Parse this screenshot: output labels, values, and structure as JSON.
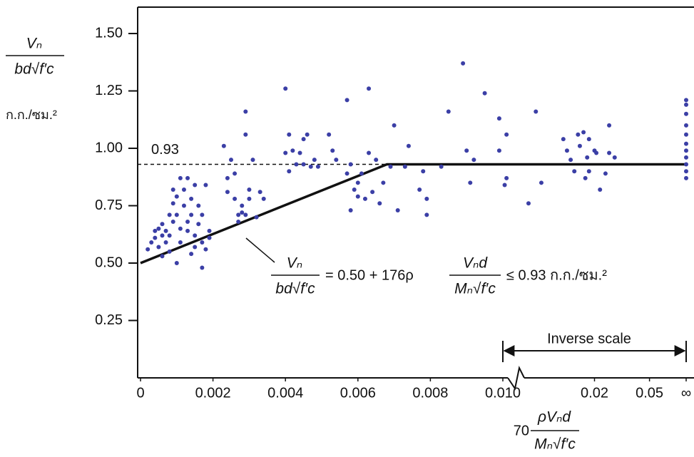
{
  "chart_data": {
    "type": "scatter",
    "y_label": {
      "numerator": "Vₙ",
      "denominator": "bd√f′c",
      "unit": "ก.ก./ซม.²"
    },
    "ylim": [
      0,
      1.615
    ],
    "yticks": [
      0.25,
      {
        "value": 0.5,
        "label": "0.50"
      },
      0.75,
      {
        "value": 1,
        "label": "1.00"
      },
      1.25,
      {
        "value": 1.5,
        "label": "1.50"
      }
    ],
    "reference_line": {
      "value": 0.93,
      "label": "0.93",
      "style": "dashed"
    },
    "color": "#3b3fa6",
    "panels": [
      {
        "scale": "linear",
        "xlim": [
          0,
          0.01
        ],
        "xticks": [
          0,
          0.002,
          0.004,
          0.006,
          0.008,
          {
            "value": 0.01,
            "label": "0.010"
          }
        ],
        "x": [
          0.0002,
          0.0003,
          0.0004,
          0.0004,
          0.0005,
          0.0005,
          0.0006,
          0.0006,
          0.0006,
          0.0007,
          0.0007,
          0.0008,
          0.0008,
          0.0009,
          0.0009,
          0.0009,
          0.001,
          0.001,
          0.0011,
          0.0011,
          0.0011,
          0.0012,
          0.0012,
          0.0013,
          0.0013,
          0.0013,
          0.0014,
          0.0014,
          0.0015,
          0.0015,
          0.0015,
          0.0016,
          0.0016,
          0.0017,
          0.0017,
          0.0017,
          0.0018,
          0.0018,
          0.0019,
          0.0019,
          0.001,
          0.0008,
          0.0014,
          0.0023,
          0.0024,
          0.0024,
          0.0025,
          0.0026,
          0.0026,
          0.0027,
          0.0027,
          0.0028,
          0.0028,
          0.0029,
          0.0029,
          0.0029,
          0.003,
          0.003,
          0.0031,
          0.0032,
          0.0033,
          0.0034,
          0.004,
          0.004,
          0.0041,
          0.0041,
          0.0042,
          0.0043,
          0.0044,
          0.0045,
          0.0045,
          0.0046,
          0.0047,
          0.0048,
          0.0049,
          0.0052,
          0.0053,
          0.0054,
          0.0057,
          0.0057,
          0.0058,
          0.0058,
          0.0059,
          0.006,
          0.006,
          0.0061,
          0.0062,
          0.0063,
          0.0063,
          0.0064,
          0.0065,
          0.0066,
          0.0067,
          0.0069,
          0.007,
          0.0071,
          0.0073,
          0.0074,
          0.0077,
          0.0078,
          0.0079,
          0.0079,
          0.0083,
          0.0085,
          0.0089,
          0.009,
          0.0091,
          0.0092,
          0.0095,
          0.0099,
          0.0099
        ],
        "values": [
          0.56,
          0.59,
          0.64,
          0.61,
          0.65,
          0.57,
          0.62,
          0.53,
          0.67,
          0.59,
          0.64,
          0.71,
          0.62,
          0.68,
          0.76,
          0.82,
          0.79,
          0.71,
          0.65,
          0.87,
          0.59,
          0.82,
          0.75,
          0.68,
          0.64,
          0.87,
          0.78,
          0.71,
          0.62,
          0.57,
          0.84,
          0.75,
          0.67,
          0.59,
          0.71,
          0.48,
          0.56,
          0.84,
          0.64,
          0.61,
          0.5,
          0.55,
          0.54,
          1.01,
          0.87,
          0.81,
          0.95,
          0.89,
          0.78,
          0.71,
          0.68,
          0.75,
          0.72,
          1.16,
          1.06,
          0.71,
          0.78,
          0.82,
          0.95,
          0.7,
          0.81,
          0.78,
          1.26,
          0.98,
          0.9,
          1.06,
          0.99,
          0.93,
          0.98,
          1.04,
          0.93,
          1.06,
          0.92,
          0.95,
          0.92,
          1.06,
          0.99,
          0.95,
          0.89,
          1.21,
          0.73,
          0.93,
          0.82,
          0.85,
          0.79,
          0.89,
          0.78,
          0.98,
          1.26,
          0.81,
          0.95,
          0.76,
          0.85,
          0.92,
          1.1,
          0.73,
          0.92,
          1.01,
          0.82,
          0.9,
          0.78,
          0.71,
          0.92,
          1.16,
          1.37,
          0.99,
          0.85,
          0.95,
          1.24,
          0.99,
          1.13
        ],
        "design_line": {
          "x": [
            0,
            0.0068,
            0.01
          ],
          "values": [
            0.5,
            0.93,
            0.93
          ]
        }
      },
      {
        "scale": "inverse",
        "xlim": [
          100,
          0
        ],
        "xticks": [
          {
            "value": 50,
            "label": "0.02"
          },
          {
            "value": 20,
            "label": "0.05"
          },
          {
            "value": 0,
            "label": "∞"
          }
        ],
        "x": [
          99,
          98,
          98,
          86,
          82,
          79,
          67,
          65,
          63,
          61,
          59,
          58,
          56,
          55,
          54,
          53,
          53,
          50,
          49,
          47,
          44,
          42,
          42,
          39,
          0,
          0,
          0,
          0,
          0,
          0,
          0,
          0,
          0,
          0,
          0
        ],
        "values": [
          0.84,
          1.06,
          0.87,
          0.76,
          1.16,
          0.85,
          1.04,
          0.99,
          0.95,
          0.9,
          1.06,
          1.01,
          1.07,
          0.87,
          0.96,
          0.9,
          1.04,
          0.99,
          0.98,
          0.82,
          0.89,
          1.1,
          0.98,
          0.96,
          1.21,
          1.19,
          1.15,
          1.1,
          1.06,
          1.02,
          0.99,
          0.96,
          0.93,
          0.9,
          0.87
        ],
        "design_line": {
          "x": [
            100,
            0
          ],
          "values": [
            0.93,
            0.93
          ]
        }
      }
    ],
    "inverse_label": "Inverse scale",
    "annotation": {
      "numerator": "Vₙ",
      "denominator": "bd√f′c",
      "middle": "= 0.50 + 176ρ",
      "numerator2": "Vₙd",
      "denominator2": "Mₙ√f′c",
      "right": "≤  0.93 ก.ก./ซม.²"
    },
    "x_label": {
      "coefficient": "70",
      "numerator": "ρVₙd",
      "denominator": "Mₙ√f′c"
    }
  }
}
